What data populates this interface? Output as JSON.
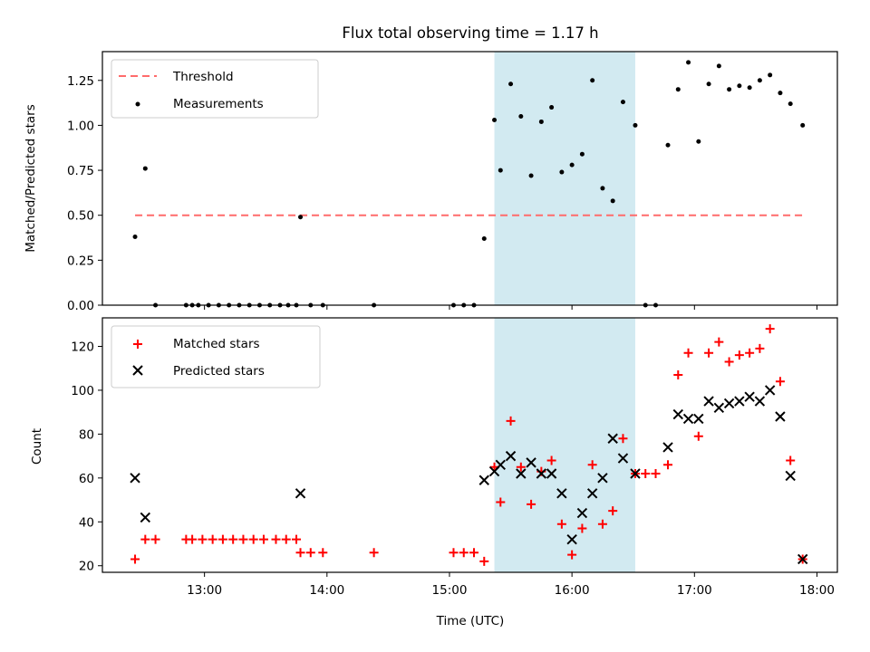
{
  "chart_data": [
    {
      "type": "scatter",
      "title": "Flux total observing time = 1.17 h",
      "xlabel": "",
      "ylabel": "Matched/Predicted stars",
      "ylim": [
        0,
        1.41
      ],
      "yticks": [
        "0.00",
        "0.25",
        "0.50",
        "0.75",
        "1.00",
        "1.25"
      ],
      "ytick_values": [
        0,
        0.25,
        0.5,
        0.75,
        1.0,
        1.25
      ],
      "legend_placement": "upper-left",
      "shaded_interval": {
        "start": "15:22",
        "end": "16:31",
        "color": "#add8e6"
      },
      "threshold": {
        "name": "Threshold",
        "value": 0.5,
        "x_start": "12:26",
        "x_end": "17:53",
        "color": "#ff6b6b"
      },
      "series": [
        {
          "name": "Measurements",
          "marker": "dot",
          "color": "#000000",
          "points": [
            [
              "12:26",
              0.38
            ],
            [
              "12:31",
              0.76
            ],
            [
              "12:36",
              0.0
            ],
            [
              "12:51",
              0.0
            ],
            [
              "12:54",
              0.0
            ],
            [
              "12:57",
              0.0
            ],
            [
              "13:02",
              0.0
            ],
            [
              "13:07",
              0.0
            ],
            [
              "13:12",
              0.0
            ],
            [
              "13:17",
              0.0
            ],
            [
              "13:22",
              0.0
            ],
            [
              "13:27",
              0.0
            ],
            [
              "13:32",
              0.0
            ],
            [
              "13:37",
              0.0
            ],
            [
              "13:41",
              0.0
            ],
            [
              "13:45",
              0.0
            ],
            [
              "13:47",
              0.49
            ],
            [
              "13:52",
              0.0
            ],
            [
              "13:58",
              0.0
            ],
            [
              "14:23",
              0.0
            ],
            [
              "15:02",
              0.0
            ],
            [
              "15:07",
              0.0
            ],
            [
              "15:12",
              0.0
            ],
            [
              "15:17",
              0.37
            ],
            [
              "15:22",
              1.03
            ],
            [
              "15:25",
              0.75
            ],
            [
              "15:30",
              1.23
            ],
            [
              "15:35",
              1.05
            ],
            [
              "15:40",
              0.72
            ],
            [
              "15:45",
              1.02
            ],
            [
              "15:50",
              1.1
            ],
            [
              "15:55",
              0.74
            ],
            [
              "16:00",
              0.78
            ],
            [
              "16:05",
              0.84
            ],
            [
              "16:10",
              1.25
            ],
            [
              "16:15",
              0.65
            ],
            [
              "16:20",
              0.58
            ],
            [
              "16:25",
              1.13
            ],
            [
              "16:31",
              1.0
            ],
            [
              "16:36",
              0.0
            ],
            [
              "16:41",
              0.0
            ],
            [
              "16:47",
              0.89
            ],
            [
              "16:52",
              1.2
            ],
            [
              "16:57",
              1.35
            ],
            [
              "17:02",
              0.91
            ],
            [
              "17:07",
              1.23
            ],
            [
              "17:12",
              1.33
            ],
            [
              "17:17",
              1.2
            ],
            [
              "17:22",
              1.22
            ],
            [
              "17:27",
              1.21
            ],
            [
              "17:32",
              1.25
            ],
            [
              "17:37",
              1.28
            ],
            [
              "17:42",
              1.18
            ],
            [
              "17:47",
              1.12
            ],
            [
              "17:53",
              1.0
            ]
          ]
        }
      ]
    },
    {
      "type": "scatter",
      "title": "",
      "xlabel": "Time (UTC)",
      "ylabel": "Count",
      "ylim": [
        17,
        133
      ],
      "yticks": [
        "20",
        "40",
        "60",
        "80",
        "100",
        "120"
      ],
      "ytick_values": [
        20,
        40,
        60,
        80,
        100,
        120
      ],
      "xticks": [
        "13:00",
        "14:00",
        "15:00",
        "16:00",
        "17:00",
        "18:00"
      ],
      "xlim": [
        "12:10",
        "18:10"
      ],
      "legend_placement": "upper-left",
      "shaded_interval": {
        "start": "15:22",
        "end": "16:31",
        "color": "#add8e6"
      },
      "series": [
        {
          "name": "Matched stars",
          "marker": "plus",
          "color": "#ff0000",
          "points": [
            [
              "12:26",
              23
            ],
            [
              "12:31",
              32
            ],
            [
              "12:36",
              32
            ],
            [
              "12:51",
              32
            ],
            [
              "12:54",
              32
            ],
            [
              "12:59",
              32
            ],
            [
              "13:04",
              32
            ],
            [
              "13:09",
              32
            ],
            [
              "13:14",
              32
            ],
            [
              "13:19",
              32
            ],
            [
              "13:24",
              32
            ],
            [
              "13:29",
              32
            ],
            [
              "13:35",
              32
            ],
            [
              "13:40",
              32
            ],
            [
              "13:45",
              32
            ],
            [
              "13:47",
              26
            ],
            [
              "13:52",
              26
            ],
            [
              "13:58",
              26
            ],
            [
              "14:23",
              26
            ],
            [
              "15:02",
              26
            ],
            [
              "15:07",
              26
            ],
            [
              "15:12",
              26
            ],
            [
              "15:17",
              22
            ],
            [
              "15:22",
              65
            ],
            [
              "15:25",
              49
            ],
            [
              "15:30",
              86
            ],
            [
              "15:35",
              65
            ],
            [
              "15:40",
              48
            ],
            [
              "15:45",
              63
            ],
            [
              "15:50",
              68
            ],
            [
              "15:55",
              39
            ],
            [
              "16:00",
              25
            ],
            [
              "16:05",
              37
            ],
            [
              "16:10",
              66
            ],
            [
              "16:15",
              39
            ],
            [
              "16:20",
              45
            ],
            [
              "16:25",
              78
            ],
            [
              "16:31",
              62
            ],
            [
              "16:36",
              62
            ],
            [
              "16:41",
              62
            ],
            [
              "16:47",
              66
            ],
            [
              "16:52",
              107
            ],
            [
              "16:57",
              117
            ],
            [
              "17:02",
              79
            ],
            [
              "17:07",
              117
            ],
            [
              "17:12",
              122
            ],
            [
              "17:17",
              113
            ],
            [
              "17:22",
              116
            ],
            [
              "17:27",
              117
            ],
            [
              "17:32",
              119
            ],
            [
              "17:37",
              128
            ],
            [
              "17:42",
              104
            ],
            [
              "17:47",
              68
            ],
            [
              "17:53",
              23
            ]
          ]
        },
        {
          "name": "Predicted stars",
          "marker": "x",
          "color": "#000000",
          "points": [
            [
              "12:26",
              60
            ],
            [
              "12:31",
              42
            ],
            [
              "13:47",
              53
            ],
            [
              "15:17",
              59
            ],
            [
              "15:22",
              63
            ],
            [
              "15:25",
              66
            ],
            [
              "15:30",
              70
            ],
            [
              "15:35",
              62
            ],
            [
              "15:40",
              67
            ],
            [
              "15:45",
              62
            ],
            [
              "15:50",
              62
            ],
            [
              "15:55",
              53
            ],
            [
              "16:00",
              32
            ],
            [
              "16:05",
              44
            ],
            [
              "16:10",
              53
            ],
            [
              "16:15",
              60
            ],
            [
              "16:20",
              78
            ],
            [
              "16:25",
              69
            ],
            [
              "16:31",
              62
            ],
            [
              "16:47",
              74
            ],
            [
              "16:52",
              89
            ],
            [
              "16:57",
              87
            ],
            [
              "17:02",
              87
            ],
            [
              "17:07",
              95
            ],
            [
              "17:12",
              92
            ],
            [
              "17:17",
              94
            ],
            [
              "17:22",
              95
            ],
            [
              "17:27",
              97
            ],
            [
              "17:32",
              95
            ],
            [
              "17:37",
              100
            ],
            [
              "17:42",
              88
            ],
            [
              "17:47",
              61
            ],
            [
              "17:53",
              23
            ]
          ]
        }
      ]
    }
  ]
}
